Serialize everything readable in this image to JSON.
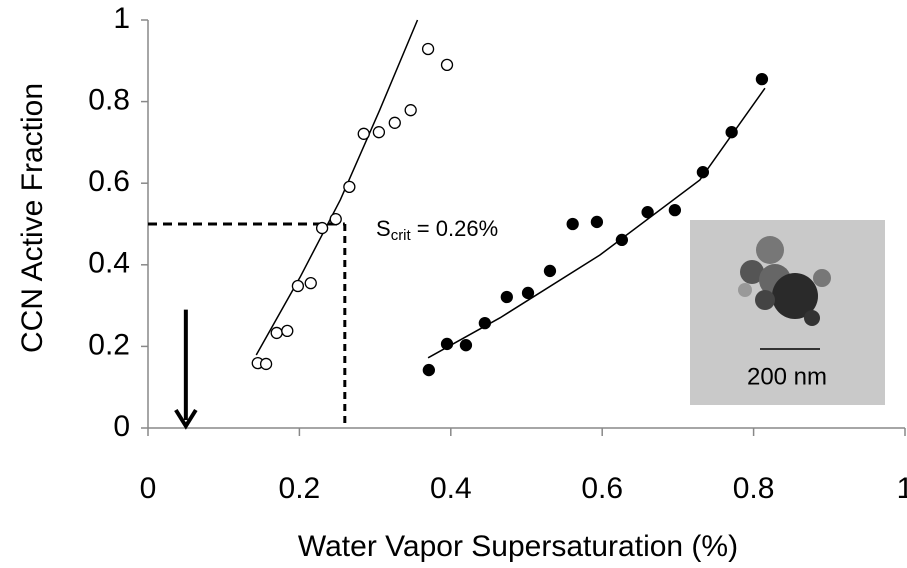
{
  "chart_data": {
    "type": "scatter",
    "x_label": "Water Vapor Supersaturation (%)",
    "y_label": "CCN Active Fraction",
    "xlim": [
      0,
      1
    ],
    "ylim": [
      0,
      1
    ],
    "xticks": [
      0,
      0.2,
      0.4,
      0.6,
      0.8,
      1
    ],
    "yticks": [
      0,
      0.2,
      0.4,
      0.6,
      0.8,
      1
    ],
    "series": [
      {
        "marker": "open",
        "color": "#000000",
        "x": [
          0.145,
          0.156,
          0.17,
          0.184,
          0.198,
          0.215,
          0.23,
          0.248,
          0.266,
          0.285,
          0.305,
          0.326,
          0.347,
          0.37,
          0.395
        ],
        "values": [
          0.159,
          0.157,
          0.233,
          0.238,
          0.348,
          0.355,
          0.49,
          0.512,
          0.591,
          0.721,
          0.725,
          0.748,
          0.779,
          0.929,
          0.89
        ]
      },
      {
        "marker": "filled",
        "color": "#000000",
        "x": [
          0.371,
          0.395,
          0.42,
          0.445,
          0.474,
          0.502,
          0.531,
          0.561,
          0.593,
          0.626,
          0.66,
          0.696,
          0.733,
          0.771,
          0.811
        ],
        "values": [
          0.142,
          0.206,
          0.203,
          0.257,
          0.321,
          0.331,
          0.385,
          0.5,
          0.505,
          0.461,
          0.529,
          0.534,
          0.627,
          0.725,
          0.855
        ]
      }
    ],
    "fits": [
      {
        "x": [
          0.143,
          0.201,
          0.254,
          0.306,
          0.356
        ],
        "values": [
          0.179,
          0.37,
          0.559,
          0.779,
          1.0
        ]
      },
      {
        "x": [
          0.37,
          0.465,
          0.597,
          0.729,
          0.815
        ],
        "values": [
          0.172,
          0.27,
          0.424,
          0.608,
          0.833
        ]
      }
    ],
    "critical": {
      "x": 0.26,
      "y": 0.5
    },
    "annotation": {
      "symbol": "S",
      "subscript": "crit",
      "text": " = 0.26%"
    },
    "arrow": {
      "x": 0.05,
      "y": 0.29
    },
    "inset_scale_label": "200 nm"
  }
}
